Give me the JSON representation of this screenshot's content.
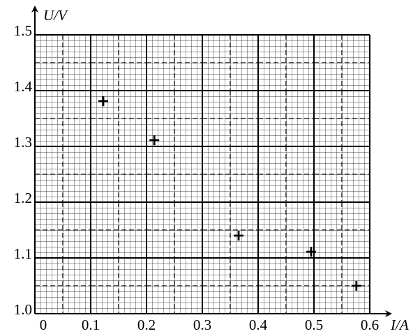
{
  "chart_data": {
    "type": "scatter",
    "x_label": "I/A",
    "y_label": "U/V",
    "x": [
      0.1225,
      0.214,
      0.365,
      0.495,
      0.576
    ],
    "values": [
      1.381,
      1.311,
      1.14,
      1.111,
      1.05
    ],
    "color": "#000000",
    "xlim": [
      0,
      0.6
    ],
    "ylim": [
      1.0,
      1.5
    ],
    "xticks": [
      0,
      0.1,
      0.2,
      0.3,
      0.4,
      0.5,
      0.6
    ],
    "yticks": [
      {
        "value": 1.0,
        "label": "1.0"
      },
      1.1,
      1.2,
      1.3,
      1.4,
      1.5
    ],
    "grid": true
  }
}
